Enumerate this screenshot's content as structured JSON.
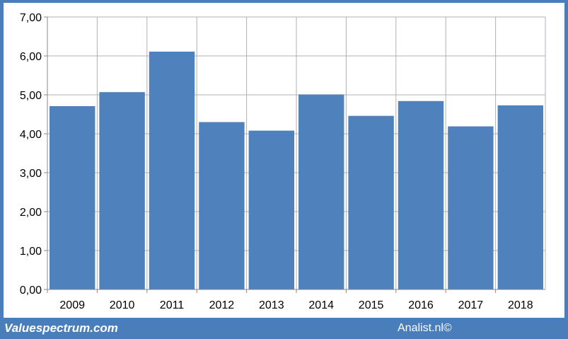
{
  "colors": {
    "frame": "#4a7ebb",
    "bar": "#4f81bd",
    "grid": "#b0b0b0",
    "axis": "#888888"
  },
  "footer": {
    "left_text": "Valuespectrum.com",
    "right_text": "Analist.nl©"
  },
  "chart_data": {
    "type": "bar",
    "categories": [
      "2009",
      "2010",
      "2011",
      "2012",
      "2013",
      "2014",
      "2015",
      "2016",
      "2017",
      "2018"
    ],
    "values": [
      4.71,
      5.07,
      6.11,
      4.3,
      4.08,
      5.01,
      4.46,
      4.84,
      4.19,
      4.73
    ],
    "yticks": [
      "0,00",
      "1,00",
      "2,00",
      "3,00",
      "4,00",
      "5,00",
      "6,00",
      "7,00"
    ],
    "ylim": [
      0,
      7
    ],
    "grid": true,
    "legend": "none"
  }
}
